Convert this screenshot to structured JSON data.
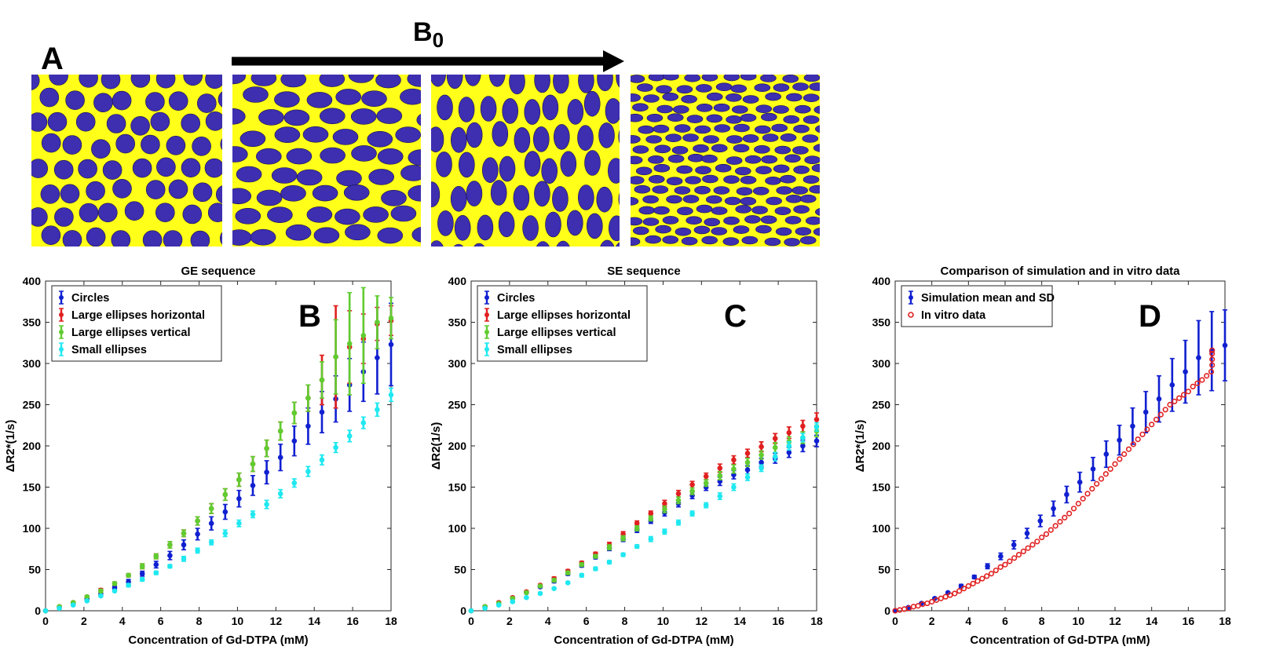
{
  "figure": {
    "panel_labels": [
      "A",
      "B",
      "C",
      "D"
    ],
    "field_label": "B",
    "field_label_sub": "0",
    "colors": {
      "background_yellow": "#ffff1a",
      "particle_blue": "#3d2fb0",
      "arrow": "#000000"
    },
    "geometry_panels": [
      {
        "name": "circles"
      },
      {
        "name": "large-ellipses-horizontal"
      },
      {
        "name": "large-ellipses-vertical"
      },
      {
        "name": "small-ellipses"
      }
    ]
  },
  "chart_data": [
    {
      "type": "scatter",
      "title": "GE sequence",
      "panel": "B",
      "xlabel": "Concentration of Gd-DTPA (mM)",
      "ylabel": "ΔR2*(1/s)",
      "xlim": [
        0,
        18
      ],
      "ylim": [
        0,
        400
      ],
      "xticks": [
        "0",
        "2",
        "4",
        "6",
        "8",
        "10",
        "12",
        "14",
        "16",
        "18"
      ],
      "yticks": [
        "0",
        "50",
        "100",
        "150",
        "200",
        "250",
        "300",
        "350",
        "400"
      ],
      "legend_position": "top-left",
      "x": [
        0,
        0.72,
        1.44,
        2.16,
        2.88,
        3.6,
        4.32,
        5.04,
        5.76,
        6.48,
        7.2,
        7.92,
        8.64,
        9.36,
        10.08,
        10.8,
        11.52,
        12.24,
        12.96,
        13.68,
        14.4,
        15.12,
        15.84,
        16.56,
        17.28,
        18
      ],
      "series": [
        {
          "name": "Circles",
          "color": "#1020d0",
          "values": [
            0,
            4,
            9,
            14,
            21,
            28,
            35,
            45,
            56,
            67,
            80,
            93,
            106,
            120,
            136,
            152,
            168,
            186,
            206,
            224,
            241,
            257,
            274,
            290,
            307,
            323
          ],
          "errors": [
            0,
            1,
            1,
            1,
            2,
            2,
            3,
            3,
            4,
            5,
            6,
            7,
            8,
            9,
            10,
            12,
            14,
            16,
            18,
            22,
            25,
            28,
            32,
            36,
            44,
            50
          ]
        },
        {
          "name": "Large ellipses horizontal",
          "color": "#e02020",
          "values": [
            0,
            5,
            10,
            17,
            25,
            33,
            43,
            54,
            66,
            80,
            94,
            109,
            124,
            141,
            159,
            178,
            197,
            218,
            240,
            258,
            280,
            308,
            320,
            330,
            348,
            352
          ],
          "errors": [
            0,
            1,
            1,
            1,
            2,
            2,
            2,
            3,
            3,
            4,
            4,
            5,
            6,
            7,
            8,
            9,
            10,
            11,
            13,
            16,
            30,
            62,
            44,
            30,
            20,
            18
          ]
        },
        {
          "name": "Large ellipses vertical",
          "color": "#60cc30",
          "values": [
            0,
            5,
            10,
            17,
            24,
            33,
            43,
            54,
            66,
            80,
            94,
            109,
            124,
            141,
            159,
            178,
            197,
            218,
            240,
            258,
            280,
            308,
            324,
            334,
            350,
            355
          ],
          "errors": [
            0,
            1,
            1,
            1,
            2,
            2,
            2,
            3,
            3,
            4,
            4,
            5,
            6,
            7,
            8,
            9,
            10,
            11,
            13,
            16,
            22,
            45,
            62,
            58,
            32,
            25
          ]
        },
        {
          "name": "Small ellipses",
          "color": "#20e8f0",
          "values": [
            0,
            3,
            7,
            12,
            18,
            24,
            31,
            38,
            46,
            54,
            63,
            73,
            83,
            94,
            106,
            117,
            129,
            142,
            155,
            169,
            183,
            198,
            212,
            228,
            244,
            262
          ],
          "errors": [
            0,
            1,
            1,
            1,
            1,
            1,
            2,
            2,
            2,
            2,
            3,
            3,
            3,
            4,
            4,
            4,
            5,
            5,
            5,
            6,
            6,
            6,
            7,
            7,
            8,
            8
          ]
        }
      ]
    },
    {
      "type": "scatter",
      "title": "SE sequence",
      "panel": "C",
      "xlabel": "Concentration of Gd-DTPA (mM)",
      "ylabel": "ΔR2(1/s)",
      "xlim": [
        0,
        18
      ],
      "ylim": [
        0,
        400
      ],
      "xticks": [
        "0",
        "2",
        "4",
        "6",
        "8",
        "10",
        "12",
        "14",
        "16",
        "18"
      ],
      "yticks": [
        "0",
        "50",
        "100",
        "150",
        "200",
        "250",
        "300",
        "350",
        "400"
      ],
      "legend_position": "top-left",
      "x": [
        0,
        0.72,
        1.44,
        2.16,
        2.88,
        3.6,
        4.32,
        5.04,
        5.76,
        6.48,
        7.2,
        7.92,
        8.64,
        9.36,
        10.08,
        10.8,
        11.52,
        12.24,
        12.96,
        13.68,
        14.4,
        15.12,
        15.84,
        16.56,
        17.28,
        18
      ],
      "series": [
        {
          "name": "Circles",
          "color": "#1020d0",
          "values": [
            0,
            5,
            9,
            15,
            22,
            29,
            36,
            45,
            55,
            65,
            76,
            87,
            98,
            109,
            119,
            130,
            140,
            150,
            157,
            165,
            171,
            180,
            185,
            192,
            200,
            206
          ],
          "errors": [
            0,
            1,
            1,
            1,
            1,
            1,
            2,
            2,
            2,
            2,
            3,
            3,
            3,
            3,
            4,
            4,
            4,
            4,
            5,
            5,
            5,
            5,
            6,
            6,
            7,
            7
          ]
        },
        {
          "name": "Large ellipses horizontal",
          "color": "#e02020",
          "values": [
            0,
            5,
            10,
            16,
            23,
            31,
            39,
            48,
            58,
            69,
            80,
            93,
            106,
            118,
            130,
            142,
            153,
            163,
            173,
            183,
            191,
            199,
            209,
            216,
            224,
            232
          ],
          "errors": [
            0,
            1,
            1,
            1,
            1,
            1,
            2,
            2,
            2,
            2,
            3,
            3,
            3,
            3,
            4,
            4,
            4,
            4,
            5,
            5,
            5,
            6,
            6,
            7,
            7,
            8
          ]
        },
        {
          "name": "Large ellipses vertical",
          "color": "#60cc30",
          "values": [
            0,
            5,
            9,
            15,
            22,
            30,
            37,
            46,
            56,
            66,
            77,
            88,
            100,
            112,
            123,
            134,
            145,
            155,
            164,
            172,
            180,
            189,
            198,
            205,
            210,
            218
          ],
          "errors": [
            0,
            1,
            1,
            1,
            1,
            1,
            2,
            2,
            2,
            2,
            3,
            3,
            3,
            3,
            4,
            4,
            4,
            4,
            5,
            5,
            5,
            5,
            6,
            6,
            7,
            7
          ]
        },
        {
          "name": "Small ellipses",
          "color": "#20e8f0",
          "values": [
            0,
            3,
            7,
            11,
            16,
            21,
            27,
            34,
            43,
            51,
            59,
            68,
            78,
            87,
            96,
            107,
            118,
            128,
            139,
            150,
            162,
            173,
            187,
            200,
            210,
            223
          ],
          "errors": [
            0,
            1,
            1,
            1,
            1,
            1,
            1,
            1,
            2,
            2,
            2,
            2,
            2,
            3,
            3,
            3,
            3,
            3,
            4,
            4,
            4,
            4,
            5,
            5,
            5,
            5
          ]
        }
      ]
    },
    {
      "type": "scatter",
      "title": "Comparison of simulation and in vitro data",
      "panel": "D",
      "xlabel": "Concentration of Gd-DTPA (mM)",
      "ylabel": "ΔR2*(1/s)",
      "xlim": [
        0,
        18
      ],
      "ylim": [
        0,
        400
      ],
      "xticks": [
        "0",
        "2",
        "4",
        "6",
        "8",
        "10",
        "12",
        "14",
        "16",
        "18"
      ],
      "yticks": [
        "0",
        "50",
        "100",
        "150",
        "200",
        "250",
        "300",
        "350",
        "400"
      ],
      "legend_position": "top-left",
      "simulation": {
        "name": "Simulation mean and SD",
        "color": "#1020d0",
        "x": [
          0,
          0.72,
          1.44,
          2.16,
          2.88,
          3.6,
          4.32,
          5.04,
          5.76,
          6.48,
          7.2,
          7.92,
          8.64,
          9.36,
          10.08,
          10.8,
          11.52,
          12.24,
          12.96,
          13.68,
          14.4,
          15.12,
          15.84,
          16.56,
          17.28,
          18
        ],
        "values": [
          0,
          4,
          9,
          15,
          22,
          30,
          41,
          54,
          66,
          80,
          94,
          109,
          124,
          141,
          156,
          172,
          190,
          207,
          224,
          241,
          257,
          274,
          290,
          307,
          315,
          322
        ],
        "errors": [
          0,
          1,
          1,
          1,
          1,
          2,
          2,
          3,
          4,
          5,
          6,
          7,
          9,
          10,
          12,
          14,
          16,
          18,
          22,
          25,
          28,
          32,
          38,
          45,
          48,
          43
        ]
      },
      "in_vitro": {
        "name": "In vitro data",
        "color": "#e02020",
        "x": [
          0,
          0.25,
          0.5,
          0.75,
          1,
          1.25,
          1.5,
          1.75,
          2,
          2.25,
          2.5,
          2.75,
          3,
          3.25,
          3.5,
          3.75,
          4,
          4.25,
          4.5,
          4.75,
          5,
          5.25,
          5.5,
          5.75,
          6,
          6.25,
          6.5,
          6.75,
          7,
          7.25,
          7.5,
          7.75,
          8,
          8.25,
          8.5,
          8.75,
          9,
          9.25,
          9.5,
          9.75,
          10,
          10.25,
          10.5,
          10.75,
          11,
          11.25,
          11.5,
          11.75,
          12,
          12.25,
          12.5,
          12.75,
          13,
          13.25,
          13.5,
          13.75,
          14,
          14.25,
          14.5,
          14.75,
          15,
          15.25,
          15.5,
          15.75,
          16,
          16.25,
          16.5,
          16.75,
          17,
          17.25,
          17.3,
          17.3,
          17.3,
          17.3
        ],
        "values": [
          0,
          1,
          2,
          3,
          5,
          6,
          8,
          9,
          11,
          13,
          15,
          17,
          19,
          21,
          24,
          27,
          30,
          33,
          36,
          39,
          42,
          45,
          49,
          53,
          56,
          60,
          64,
          68,
          72,
          76,
          80,
          84,
          89,
          93,
          98,
          103,
          108,
          113,
          118,
          124,
          130,
          136,
          142,
          148,
          154,
          160,
          166,
          172,
          178,
          184,
          190,
          196,
          202,
          208,
          214,
          220,
          226,
          232,
          238,
          244,
          250,
          254,
          258,
          262,
          266,
          272,
          276,
          280,
          285,
          290,
          298,
          305,
          312,
          316
        ]
      }
    }
  ]
}
